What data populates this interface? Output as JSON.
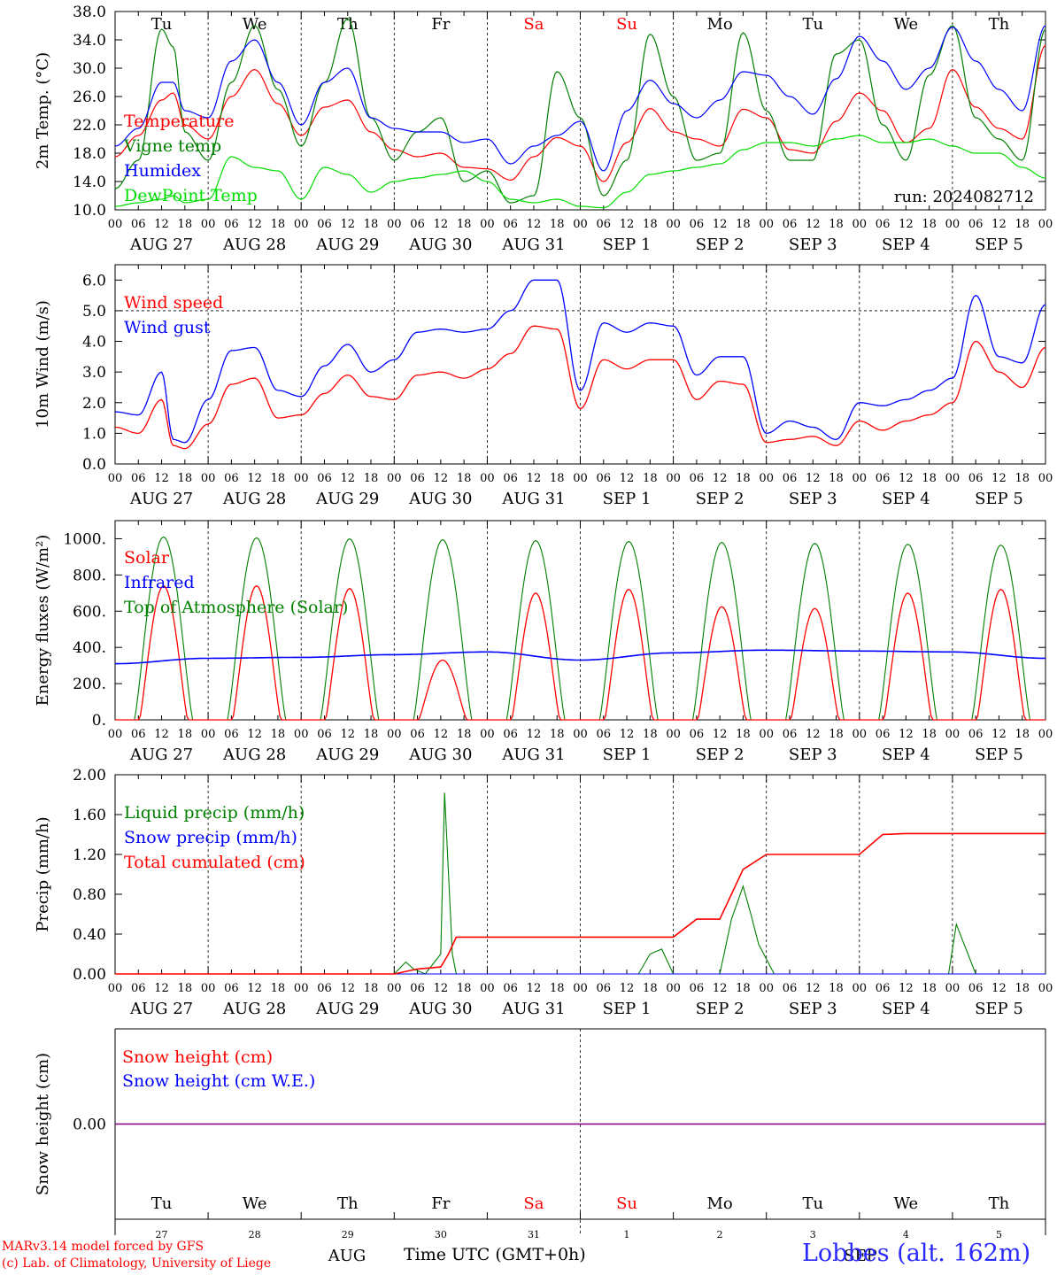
{
  "days": [
    "Tu",
    "We",
    "Th",
    "Fr",
    "Sa",
    "Su",
    "Mo",
    "Tu",
    "We",
    "Th"
  ],
  "weekend_idx": [
    4,
    5
  ],
  "hour_ticks": [
    "00",
    "06",
    "12",
    "18"
  ],
  "date_labels": [
    "AUG 27",
    "AUG 28",
    "AUG 29",
    "AUG 30",
    "AUG 31",
    "SEP  1",
    "SEP  2",
    "SEP  3",
    "SEP  4",
    "SEP  5"
  ],
  "day_numbers": [
    "27",
    "28",
    "29",
    "30",
    "31",
    "1",
    "2",
    "3",
    "4",
    "5"
  ],
  "months": [
    "AUG",
    "SEP"
  ],
  "run_label": "run: 2024082712",
  "footer": {
    "line1": "MARv3.14 model forced by GFS",
    "line2": "(c) Lab. of Climatology, University of Liege",
    "xlabel": "Time UTC (GMT+0h)",
    "station": "Lobbes (alt. 162m)"
  },
  "colors": {
    "red": "#ff0000",
    "green": "#008000",
    "blue": "#0000ff",
    "lime": "#00dd00",
    "purple": "#800080"
  },
  "chart_data": [
    {
      "id": "temp",
      "type": "line",
      "ylabel": "2m Temp. (°C)",
      "ylim": [
        10,
        38
      ],
      "yticks": [
        "10.0",
        "14.0",
        "18.0",
        "22.0",
        "26.0",
        "30.0",
        "34.0",
        "38.0"
      ],
      "x_unit": "hours since AUG 27 00 UTC",
      "series": [
        {
          "name": "Temperature",
          "color": "red",
          "x": [
            0,
            6,
            12,
            15,
            18,
            24,
            30,
            36,
            42,
            48,
            54,
            60,
            66,
            72,
            78,
            84,
            90,
            96,
            102,
            108,
            114,
            120,
            126,
            132,
            138,
            144,
            150,
            156,
            162,
            168,
            174,
            180,
            186,
            192,
            198,
            204,
            210,
            216,
            222,
            228,
            234,
            240
          ],
          "y": [
            17.5,
            20.5,
            25.5,
            26.5,
            22,
            20,
            26,
            29.8,
            25,
            20.5,
            24.5,
            25.5,
            21,
            18.5,
            17.5,
            18,
            16,
            15.8,
            14.2,
            17.5,
            20.2,
            19,
            14,
            19.5,
            24.3,
            21,
            20,
            19,
            24.2,
            23,
            18.5,
            18,
            22.5,
            26.5,
            24,
            19.5,
            21.5,
            29.8,
            24.5,
            21.5,
            20,
            33.2
          ]
        },
        {
          "name": "Vigne temp",
          "color": "green",
          "x": [
            0,
            6,
            12,
            15,
            18,
            24,
            30,
            36,
            42,
            48,
            54,
            60,
            66,
            72,
            78,
            84,
            90,
            96,
            102,
            108,
            114,
            120,
            126,
            132,
            138,
            144,
            150,
            156,
            162,
            168,
            174,
            180,
            186,
            192,
            198,
            204,
            210,
            216,
            222,
            228,
            234,
            240
          ],
          "y": [
            13,
            17,
            35.5,
            33,
            21,
            17,
            28,
            36,
            27,
            19,
            28,
            37,
            23,
            17,
            21,
            23,
            14,
            15.5,
            11,
            12,
            29.5,
            23,
            12,
            17,
            34.8,
            26,
            17,
            18,
            35,
            24,
            17,
            17,
            32,
            34,
            22,
            17,
            29,
            36,
            23,
            20,
            17,
            35.5
          ]
        },
        {
          "name": "Humidex",
          "color": "blue",
          "x": [
            0,
            6,
            12,
            15,
            18,
            24,
            30,
            36,
            42,
            48,
            54,
            60,
            66,
            72,
            78,
            84,
            90,
            96,
            102,
            108,
            114,
            120,
            126,
            132,
            138,
            144,
            150,
            156,
            162,
            168,
            174,
            180,
            186,
            192,
            198,
            204,
            210,
            216,
            222,
            228,
            234,
            240
          ],
          "y": [
            19,
            21.5,
            28,
            28,
            24,
            23,
            31,
            34,
            28,
            22,
            28,
            30,
            23,
            21.5,
            21,
            21,
            19.5,
            20,
            16.5,
            19,
            20.5,
            22.5,
            15.5,
            24,
            28.3,
            25,
            23,
            25.5,
            29.5,
            29,
            26,
            23.5,
            28.5,
            34.5,
            31,
            27,
            30,
            35.8,
            31,
            27,
            24,
            36
          ]
        },
        {
          "name": "DewPoint Temp",
          "color": "lime",
          "x": [
            0,
            6,
            12,
            15,
            18,
            24,
            30,
            36,
            42,
            48,
            54,
            60,
            66,
            72,
            78,
            84,
            90,
            96,
            102,
            108,
            114,
            120,
            126,
            132,
            138,
            144,
            150,
            156,
            162,
            168,
            174,
            180,
            186,
            192,
            198,
            204,
            210,
            216,
            222,
            228,
            234,
            240
          ],
          "y": [
            10.5,
            11,
            11.5,
            12,
            11,
            11.5,
            17.5,
            16,
            15.5,
            11.5,
            16,
            15,
            12.5,
            14,
            14.5,
            15,
            15.5,
            14,
            11.5,
            11,
            11.5,
            10.5,
            10.3,
            12.5,
            15,
            15.5,
            16,
            16.5,
            18.5,
            19.5,
            19.5,
            19,
            20,
            20.5,
            19.5,
            19.5,
            20,
            19,
            18,
            18,
            16,
            14.5
          ]
        }
      ]
    },
    {
      "id": "wind",
      "type": "line",
      "ylabel": "10m Wind (m/s)",
      "ylim": [
        0,
        6.5
      ],
      "yticks": [
        "0.0",
        "1.0",
        "2.0",
        "3.0",
        "4.0",
        "5.0",
        "6.0"
      ],
      "ref_line": 5.0,
      "series": [
        {
          "name": "Wind speed",
          "color": "red",
          "x": [
            0,
            6,
            12,
            15,
            18,
            24,
            30,
            36,
            42,
            48,
            54,
            60,
            66,
            72,
            78,
            84,
            90,
            96,
            102,
            108,
            114,
            120,
            126,
            132,
            138,
            144,
            150,
            156,
            162,
            168,
            174,
            180,
            186,
            192,
            198,
            204,
            210,
            216,
            222,
            228,
            234,
            240
          ],
          "y": [
            1.2,
            1.0,
            2.1,
            0.6,
            0.5,
            1.3,
            2.6,
            2.8,
            1.5,
            1.6,
            2.3,
            2.9,
            2.2,
            2.1,
            2.9,
            3.0,
            2.8,
            3.1,
            3.6,
            4.5,
            4.4,
            1.8,
            3.4,
            3.1,
            3.4,
            3.4,
            2.1,
            2.7,
            2.6,
            0.7,
            0.8,
            0.9,
            0.6,
            1.4,
            1.1,
            1.4,
            1.6,
            2.0,
            4.0,
            3.0,
            2.5,
            3.8
          ]
        },
        {
          "name": "Wind gust",
          "color": "blue",
          "x": [
            0,
            6,
            12,
            15,
            18,
            24,
            30,
            36,
            42,
            48,
            54,
            60,
            66,
            72,
            78,
            84,
            90,
            96,
            102,
            108,
            114,
            120,
            126,
            132,
            138,
            144,
            150,
            156,
            162,
            168,
            174,
            180,
            186,
            192,
            198,
            204,
            210,
            216,
            222,
            228,
            234,
            240
          ],
          "y": [
            1.7,
            1.6,
            3.0,
            0.8,
            0.7,
            2.1,
            3.7,
            3.8,
            2.4,
            2.2,
            3.2,
            3.9,
            3.0,
            3.4,
            4.3,
            4.4,
            4.3,
            4.4,
            5.0,
            6.0,
            6.0,
            2.4,
            4.6,
            4.3,
            4.6,
            4.5,
            2.9,
            3.5,
            3.5,
            1.0,
            1.4,
            1.2,
            0.8,
            2.0,
            1.9,
            2.1,
            2.4,
            2.8,
            5.5,
            3.5,
            3.3,
            5.2
          ]
        }
      ]
    },
    {
      "id": "energy",
      "type": "line",
      "ylabel": "Energy fluxes (W/m²)",
      "ylim": [
        0,
        1100
      ],
      "yticks": [
        "0.",
        "200.",
        "400.",
        "600.",
        "800.",
        "1000."
      ],
      "series": [
        {
          "name": "Solar",
          "color": "red",
          "peaks": [
            740,
            740,
            725,
            330,
            700,
            720,
            625,
            615,
            700,
            720
          ]
        },
        {
          "name": "Infrared",
          "color": "blue",
          "x": [
            0,
            24,
            48,
            72,
            96,
            120,
            144,
            168,
            192,
            216,
            240
          ],
          "y": [
            310,
            340,
            345,
            360,
            375,
            330,
            370,
            385,
            380,
            375,
            340
          ]
        },
        {
          "name": "Top of Atmosphere (Solar)",
          "color": "green",
          "peaks": [
            1010,
            1005,
            1000,
            995,
            990,
            985,
            980,
            975,
            970,
            965
          ]
        }
      ]
    },
    {
      "id": "precip",
      "type": "line",
      "ylabel": "Precip (mm/h)",
      "ylim": [
        0,
        2.0
      ],
      "yticks": [
        "0.00",
        "0.40",
        "0.80",
        "1.20",
        "1.60",
        "2.00"
      ],
      "series": [
        {
          "name": "Liquid precip (mm/h)",
          "color": "green",
          "x": [
            0,
            72,
            75,
            77,
            80,
            84,
            85,
            87,
            88,
            135,
            138,
            141,
            144,
            156,
            159,
            162,
            164,
            166,
            170,
            215,
            217,
            219,
            222,
            240
          ],
          "y": [
            0,
            0,
            0.12,
            0.05,
            0,
            0.2,
            1.82,
            0.2,
            0,
            0,
            0.2,
            0.25,
            0,
            0,
            0.55,
            0.88,
            0.6,
            0.3,
            0,
            0,
            0.5,
            0.3,
            0,
            0
          ]
        },
        {
          "name": "Snow precip (mm/h)",
          "color": "blue",
          "x": [
            0,
            240
          ],
          "y": [
            0,
            0
          ]
        },
        {
          "name": "Total cumulated (cm)",
          "color": "red",
          "x": [
            0,
            72,
            78,
            84,
            86,
            88,
            144,
            150,
            156,
            162,
            168,
            192,
            198,
            204,
            240
          ],
          "y": [
            0,
            0,
            0.05,
            0.07,
            0.2,
            0.37,
            0.37,
            0.55,
            0.55,
            1.05,
            1.2,
            1.2,
            1.4,
            1.41,
            1.41
          ]
        }
      ]
    },
    {
      "id": "snow",
      "type": "line",
      "ylabel": "Snow height (cm)",
      "ylim": [
        -1,
        1
      ],
      "yticks": [
        "0.00"
      ],
      "series": [
        {
          "name": "Snow height (cm)",
          "color": "red",
          "x": [
            0,
            240
          ],
          "y": [
            0,
            0
          ]
        },
        {
          "name": "Snow height (cm W.E.)",
          "color": "blue",
          "x": [
            0,
            240
          ],
          "y": [
            0,
            0
          ]
        }
      ]
    }
  ]
}
